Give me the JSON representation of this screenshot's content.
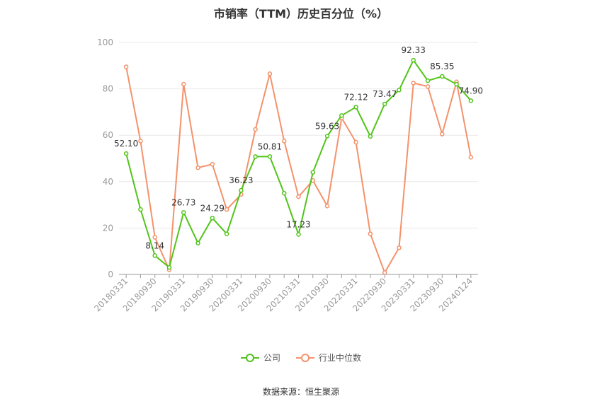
{
  "chart_data": {
    "type": "line",
    "title": "市销率（TTM）历史百分位（%）",
    "x": [
      "20180331",
      "20180630",
      "20180930",
      "20181231",
      "20190331",
      "20190630",
      "20190930",
      "20191231",
      "20200331",
      "20200630",
      "20200930",
      "20201231",
      "20210331",
      "20210630",
      "20210930",
      "20211231",
      "20220331",
      "20220630",
      "20220930",
      "20221231",
      "20230331",
      "20230630",
      "20230930",
      "20231231",
      "20240124"
    ],
    "x_tick_labels": [
      "20180331",
      "20180930",
      "20190331",
      "20190930",
      "20200331",
      "20200930",
      "20210331",
      "20210930",
      "20220331",
      "20220930",
      "20230331",
      "20230930",
      "20240124"
    ],
    "ylim": [
      0,
      100
    ],
    "y_ticks": [
      0,
      20,
      40,
      60,
      80,
      100
    ],
    "grid": true,
    "legend_position": "bottom",
    "series": [
      {
        "name": "公司",
        "color": "#52c41a",
        "values": [
          52.1,
          28.0,
          8.14,
          3.0,
          26.73,
          13.5,
          24.29,
          17.5,
          36.23,
          50.81,
          50.81,
          35.0,
          17.23,
          44.0,
          59.63,
          68.5,
          72.12,
          59.5,
          73.47,
          79.5,
          92.33,
          83.5,
          85.35,
          82.0,
          74.9
        ],
        "labels": {
          "0": "52.10",
          "2": "8.14",
          "4": "26.73",
          "6": "24.29",
          "8": "36.23",
          "10": "50.81",
          "12": "17.23",
          "14": "59.63",
          "16": "72.12",
          "18": "73.47",
          "20": "92.33",
          "22": "85.35",
          "24": "74.90"
        }
      },
      {
        "name": "行业中位数",
        "color": "#f4926c",
        "values": [
          89.5,
          57.5,
          16.0,
          2.0,
          82.0,
          46.0,
          47.5,
          28.0,
          34.5,
          62.5,
          86.5,
          57.5,
          33.5,
          40.5,
          29.5,
          67.5,
          57.0,
          17.5,
          0.8,
          11.5,
          82.5,
          81.0,
          60.5,
          83.0,
          50.5
        ]
      }
    ]
  },
  "source": "数据来源：恒生聚源"
}
